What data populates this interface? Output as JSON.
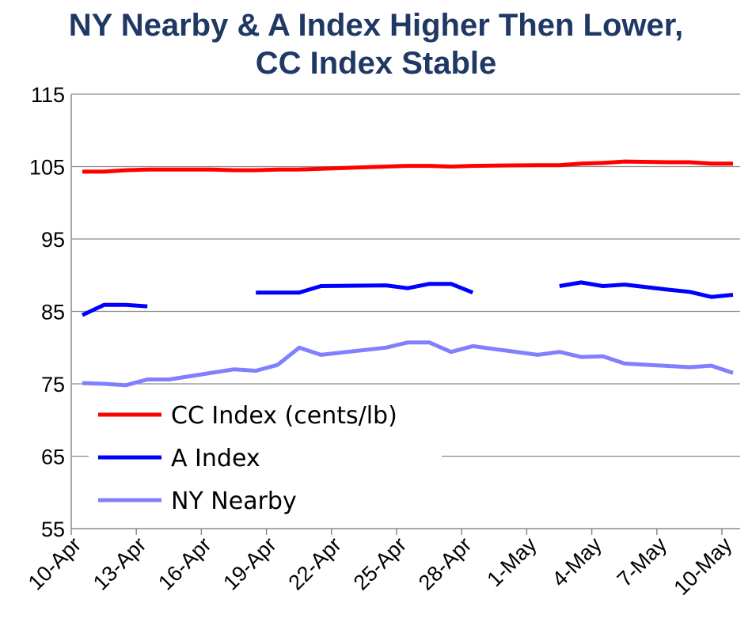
{
  "chart_data": {
    "type": "line",
    "title_line1": "NY Nearby & A Index Higher Then Lower,",
    "title_line2": "CC Index Stable",
    "xlabel": "",
    "ylabel": "",
    "ylim": [
      55,
      115
    ],
    "yticks": [
      115,
      105,
      95,
      85,
      75,
      65,
      55
    ],
    "xlim": [
      "10-Apr",
      "10-May"
    ],
    "xticks": [
      "10-Apr",
      "13-Apr",
      "16-Apr",
      "19-Apr",
      "22-Apr",
      "25-Apr",
      "28-Apr",
      "1-May",
      "4-May",
      "7-May",
      "10-May"
    ],
    "grid": "horizontal",
    "legend_position": "lower-left",
    "series": [
      {
        "name": "CC Index (cents/lb)",
        "color": "#ff0000",
        "points": [
          [
            "10-Apr",
            104.3
          ],
          [
            "11-Apr",
            104.3
          ],
          [
            "12-Apr",
            104.5
          ],
          [
            "13-Apr",
            104.6
          ],
          [
            "16-Apr",
            104.6
          ],
          [
            "17-Apr",
            104.5
          ],
          [
            "18-Apr",
            104.5
          ],
          [
            "19-Apr",
            104.6
          ],
          [
            "20-Apr",
            104.6
          ],
          [
            "21-Apr",
            104.7
          ],
          [
            "23-Apr",
            104.9
          ],
          [
            "24-Apr",
            105.0
          ],
          [
            "25-Apr",
            105.1
          ],
          [
            "26-Apr",
            105.1
          ],
          [
            "27-Apr",
            105.0
          ],
          [
            "28-Apr",
            105.1
          ],
          [
            "1-May",
            105.2
          ],
          [
            "2-May",
            105.2
          ],
          [
            "3-May",
            105.4
          ],
          [
            "4-May",
            105.5
          ],
          [
            "5-May",
            105.7
          ],
          [
            "7-May",
            105.6
          ],
          [
            "8-May",
            105.6
          ],
          [
            "9-May",
            105.4
          ],
          [
            "10-May",
            105.4
          ]
        ]
      },
      {
        "name": "A Index",
        "color": "#0000ff",
        "points": [
          [
            "10-Apr",
            84.5
          ],
          [
            "11-Apr",
            85.9
          ],
          [
            "12-Apr",
            85.9
          ],
          [
            "13-Apr",
            85.7
          ],
          null,
          [
            "18-Apr",
            87.6
          ],
          [
            "19-Apr",
            87.6
          ],
          [
            "20-Apr",
            87.6
          ],
          [
            "21-Apr",
            88.5
          ],
          [
            "24-Apr",
            88.6
          ],
          [
            "25-Apr",
            88.2
          ],
          [
            "26-Apr",
            88.8
          ],
          [
            "27-Apr",
            88.8
          ],
          [
            "28-Apr",
            87.6
          ],
          null,
          [
            "2-May",
            88.5
          ],
          [
            "3-May",
            89.0
          ],
          [
            "4-May",
            88.5
          ],
          [
            "5-May",
            88.7
          ],
          [
            "7-May",
            88.0
          ],
          [
            "8-May",
            87.7
          ],
          [
            "9-May",
            87.0
          ],
          [
            "10-May",
            87.3
          ]
        ]
      },
      {
        "name": "NY Nearby",
        "color": "#8080ff",
        "points": [
          [
            "10-Apr",
            75.1
          ],
          [
            "11-Apr",
            75.0
          ],
          [
            "12-Apr",
            74.8
          ],
          [
            "13-Apr",
            75.6
          ],
          [
            "14-Apr",
            75.6
          ],
          [
            "17-Apr",
            77.0
          ],
          [
            "18-Apr",
            76.8
          ],
          [
            "19-Apr",
            77.6
          ],
          [
            "20-Apr",
            80.0
          ],
          [
            "21-Apr",
            79.0
          ],
          [
            "24-Apr",
            80.0
          ],
          [
            "25-Apr",
            80.7
          ],
          [
            "26-Apr",
            80.7
          ],
          [
            "27-Apr",
            79.4
          ],
          [
            "28-Apr",
            80.2
          ],
          [
            "1-May",
            79.0
          ],
          [
            "2-May",
            79.4
          ],
          [
            "3-May",
            78.7
          ],
          [
            "4-May",
            78.8
          ],
          [
            "5-May",
            77.8
          ],
          [
            "8-May",
            77.3
          ],
          [
            "9-May",
            77.5
          ],
          [
            "10-May",
            76.5
          ]
        ]
      }
    ]
  }
}
